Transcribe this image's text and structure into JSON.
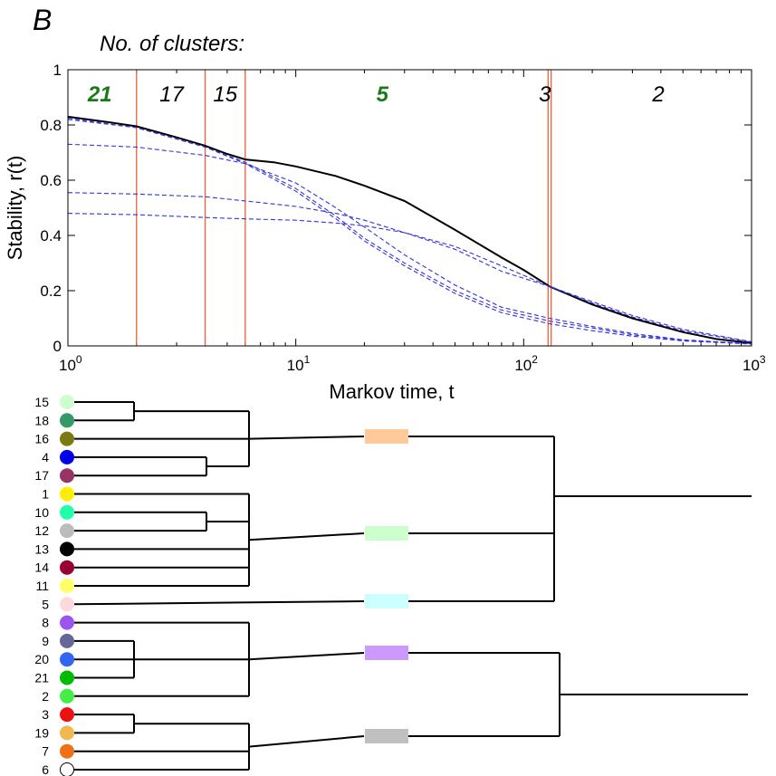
{
  "panel_label": "B",
  "clusters_heading": "No. of clusters:",
  "chart_data": {
    "type": "line",
    "xscale": "log",
    "xlim": [
      1,
      1000
    ],
    "ylim": [
      0,
      1
    ],
    "xlabel": "Markov time, t",
    "ylabel": "Stability, r(t)",
    "x_ticks": [
      {
        "value": 1,
        "base": "10",
        "exp": "0"
      },
      {
        "value": 10,
        "base": "10",
        "exp": "1"
      },
      {
        "value": 100,
        "base": "10",
        "exp": "2"
      },
      {
        "value": 1000,
        "base": "10",
        "exp": "3"
      }
    ],
    "y_ticks": [
      "0",
      "0.2",
      "0.4",
      "0.6",
      "0.8",
      "1"
    ],
    "y_tick_values": [
      0,
      0.2,
      0.4,
      0.6,
      0.8,
      1
    ],
    "vertical_lines": [
      2,
      4,
      6,
      128,
      132
    ],
    "vertical_line_color": "#e8603c",
    "cluster_labels": [
      {
        "text": "21",
        "t": 1.38,
        "color": "#1a7a1a",
        "bold": true
      },
      {
        "text": "17",
        "t": 2.85,
        "color": "#000000",
        "bold": false
      },
      {
        "text": "15",
        "t": 4.9,
        "color": "#000000",
        "bold": false
      },
      {
        "text": "5",
        "t": 24,
        "color": "#1a7a1a",
        "bold": true
      },
      {
        "text": "3",
        "t": 124,
        "color": "#000000",
        "bold": false
      },
      {
        "text": "2",
        "t": 390,
        "color": "#000000",
        "bold": false
      }
    ],
    "series": [
      {
        "style": "solid",
        "color": "#000000",
        "points": [
          [
            1,
            0.83
          ],
          [
            1.5,
            0.81
          ],
          [
            2,
            0.795
          ],
          [
            3,
            0.755
          ],
          [
            4,
            0.725
          ],
          [
            5,
            0.695
          ],
          [
            6,
            0.675
          ],
          [
            8,
            0.665
          ],
          [
            10,
            0.65
          ],
          [
            15,
            0.615
          ],
          [
            20,
            0.58
          ],
          [
            30,
            0.525
          ],
          [
            50,
            0.42
          ],
          [
            80,
            0.32
          ],
          [
            100,
            0.275
          ],
          [
            130,
            0.215
          ],
          [
            200,
            0.15
          ],
          [
            300,
            0.1
          ],
          [
            500,
            0.05
          ],
          [
            700,
            0.025
          ],
          [
            1000,
            0.01
          ]
        ]
      },
      {
        "style": "dashed",
        "color": "#3333dd",
        "points": [
          [
            1,
            0.825
          ],
          [
            2,
            0.79
          ],
          [
            4,
            0.72
          ],
          [
            6,
            0.665
          ],
          [
            10,
            0.57
          ],
          [
            15,
            0.47
          ],
          [
            20,
            0.39
          ],
          [
            30,
            0.3
          ],
          [
            50,
            0.2
          ],
          [
            80,
            0.13
          ],
          [
            130,
            0.09
          ],
          [
            200,
            0.065
          ],
          [
            300,
            0.04
          ],
          [
            500,
            0.02
          ],
          [
            1000,
            0.008
          ]
        ]
      },
      {
        "style": "dashed",
        "color": "#3333dd",
        "points": [
          [
            1,
            0.82
          ],
          [
            2,
            0.79
          ],
          [
            4,
            0.72
          ],
          [
            6,
            0.66
          ],
          [
            10,
            0.56
          ],
          [
            15,
            0.46
          ],
          [
            20,
            0.38
          ],
          [
            30,
            0.29
          ],
          [
            50,
            0.19
          ],
          [
            80,
            0.12
          ],
          [
            130,
            0.08
          ],
          [
            200,
            0.055
          ],
          [
            300,
            0.035
          ],
          [
            500,
            0.018
          ],
          [
            1000,
            0.007
          ]
        ]
      },
      {
        "style": "dashed",
        "color": "#3333dd",
        "points": [
          [
            1,
            0.73
          ],
          [
            2,
            0.72
          ],
          [
            4,
            0.69
          ],
          [
            6,
            0.66
          ],
          [
            10,
            0.59
          ],
          [
            15,
            0.5
          ],
          [
            20,
            0.43
          ],
          [
            30,
            0.33
          ],
          [
            50,
            0.22
          ],
          [
            80,
            0.14
          ],
          [
            130,
            0.1
          ],
          [
            200,
            0.07
          ],
          [
            300,
            0.045
          ],
          [
            500,
            0.022
          ],
          [
            1000,
            0.008
          ]
        ]
      },
      {
        "style": "dashed",
        "color": "#3333dd",
        "points": [
          [
            1,
            0.555
          ],
          [
            2,
            0.55
          ],
          [
            4,
            0.54
          ],
          [
            6,
            0.525
          ],
          [
            10,
            0.505
          ],
          [
            15,
            0.48
          ],
          [
            20,
            0.455
          ],
          [
            30,
            0.41
          ],
          [
            50,
            0.35
          ],
          [
            80,
            0.27
          ],
          [
            130,
            0.215
          ],
          [
            200,
            0.16
          ],
          [
            300,
            0.11
          ],
          [
            500,
            0.06
          ],
          [
            1000,
            0.015
          ]
        ]
      },
      {
        "style": "dashed",
        "color": "#3333dd",
        "points": [
          [
            1,
            0.48
          ],
          [
            2,
            0.475
          ],
          [
            4,
            0.465
          ],
          [
            6,
            0.46
          ],
          [
            10,
            0.455
          ],
          [
            15,
            0.445
          ],
          [
            20,
            0.435
          ],
          [
            30,
            0.41
          ],
          [
            50,
            0.36
          ],
          [
            80,
            0.29
          ],
          [
            130,
            0.215
          ],
          [
            200,
            0.155
          ],
          [
            300,
            0.105
          ],
          [
            500,
            0.055
          ],
          [
            1000,
            0.013
          ]
        ]
      }
    ]
  },
  "dendrogram": {
    "leaves": [
      {
        "label": "15",
        "color": "#ccffcc"
      },
      {
        "label": "18",
        "color": "#339966"
      },
      {
        "label": "16",
        "color": "#7a7a10"
      },
      {
        "label": "4",
        "color": "#0000ee"
      },
      {
        "label": "17",
        "color": "#993366"
      },
      {
        "label": "1",
        "color": "#ffee00"
      },
      {
        "label": "10",
        "color": "#22ffaa"
      },
      {
        "label": "12",
        "color": "#bbbbbb"
      },
      {
        "label": "13",
        "color": "#000000"
      },
      {
        "label": "14",
        "color": "#990033"
      },
      {
        "label": "11",
        "color": "#ffff66"
      },
      {
        "label": "5",
        "color": "#ffd8dc"
      },
      {
        "label": "8",
        "color": "#9955ee"
      },
      {
        "label": "9",
        "color": "#666699"
      },
      {
        "label": "20",
        "color": "#3366ee"
      },
      {
        "label": "21",
        "color": "#00bb00"
      },
      {
        "label": "2",
        "color": "#44ee44"
      },
      {
        "label": "3",
        "color": "#ee1111"
      },
      {
        "label": "19",
        "color": "#f0b850"
      },
      {
        "label": "7",
        "color": "#f07018"
      },
      {
        "label": "6",
        "color": "#ffffff"
      }
    ],
    "cluster_bars": [
      {
        "color": "#ffc999"
      },
      {
        "color": "#ccffcc"
      },
      {
        "color": "#ccffff"
      },
      {
        "color": "#cc99ff"
      },
      {
        "color": "#c0c0c0"
      }
    ]
  }
}
